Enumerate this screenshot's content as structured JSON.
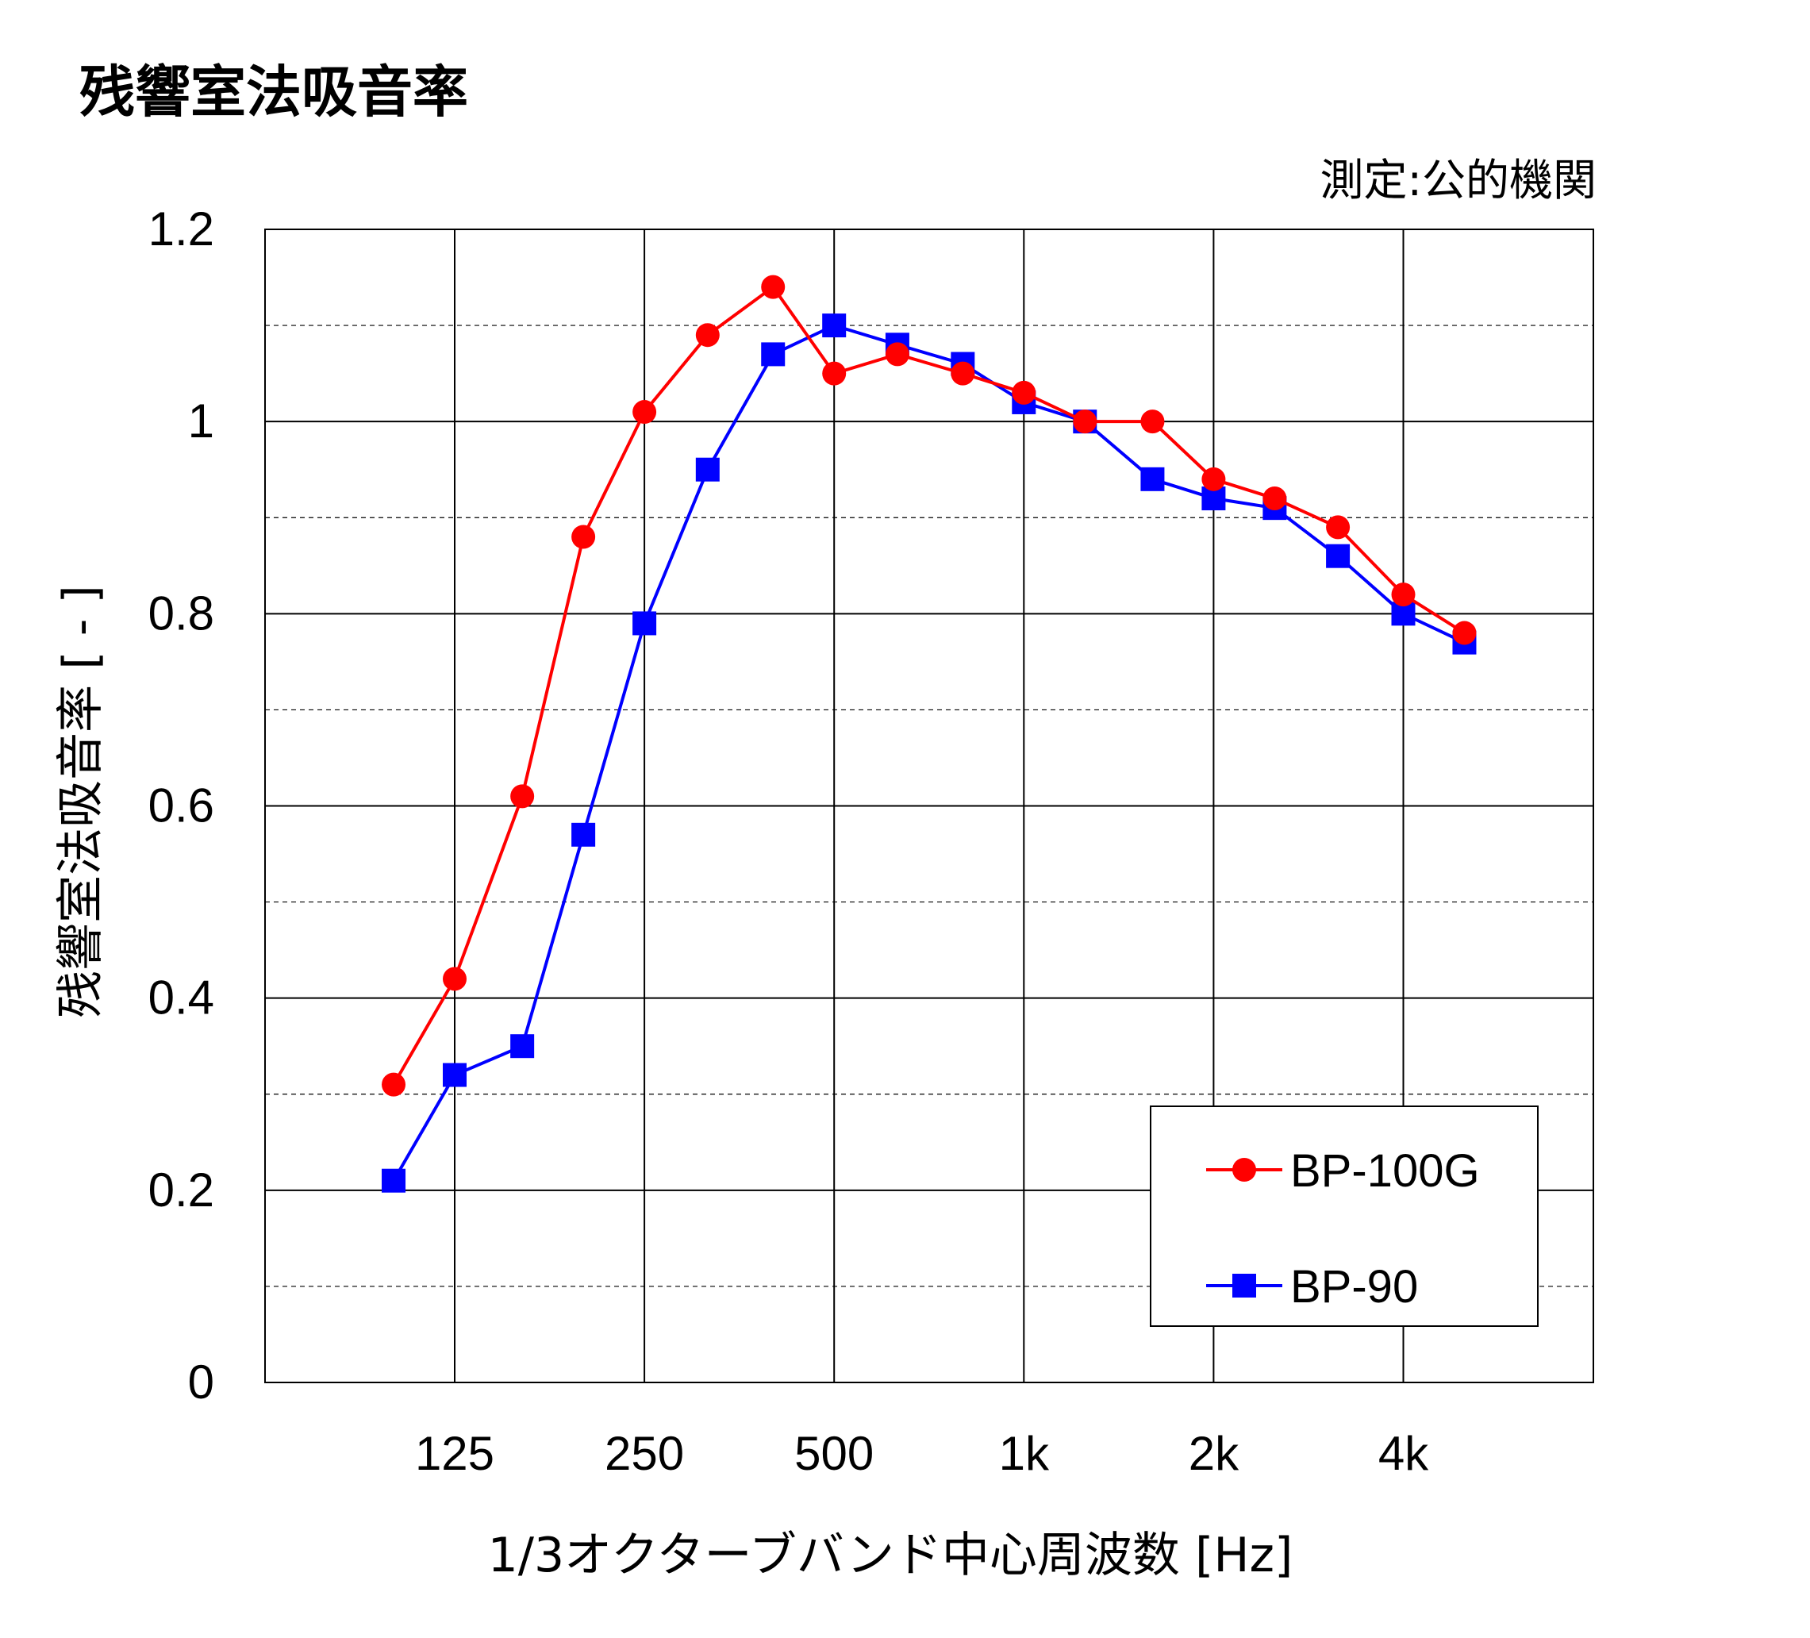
{
  "chart_data": {
    "type": "line",
    "title": "残響室法吸音率",
    "subtitle": "測定:公的機関",
    "xlabel": "1/3オクターブバンド中心周波数 [Hz]",
    "ylabel": "残響室法吸音率 [ - ]",
    "x_scale": "log",
    "x": [
      100,
      125,
      160,
      200,
      250,
      315,
      400,
      500,
      630,
      800,
      1000,
      1250,
      1600,
      2000,
      2500,
      3150,
      4000,
      5000
    ],
    "x_ticks": [
      125,
      250,
      500,
      1000,
      2000,
      4000
    ],
    "x_tick_labels": [
      "125",
      "250",
      "500",
      "1k",
      "2k",
      "4k"
    ],
    "ylim": [
      0,
      1.2
    ],
    "y_ticks": [
      0,
      0.2,
      0.4,
      0.6,
      0.8,
      1,
      1.2
    ],
    "y_tick_labels": [
      "0",
      "0.2",
      "0.4",
      "0.6",
      "0.8",
      "1",
      "1.2"
    ],
    "grid": true,
    "legend_position": "bottom-right",
    "series": [
      {
        "name": "BP-100G",
        "color": "#ff0000",
        "marker": "circle",
        "values": [
          0.31,
          0.42,
          0.61,
          0.88,
          1.01,
          1.09,
          1.14,
          1.05,
          1.07,
          1.05,
          1.03,
          1.0,
          1.0,
          0.94,
          0.92,
          0.89,
          0.82,
          0.78
        ]
      },
      {
        "name": "BP-90",
        "color": "#0000ff",
        "marker": "square",
        "values": [
          0.21,
          0.32,
          0.35,
          0.57,
          0.79,
          0.95,
          1.07,
          1.1,
          1.08,
          1.06,
          1.02,
          1.0,
          0.94,
          0.92,
          0.91,
          0.86,
          0.8,
          0.77
        ]
      }
    ]
  }
}
